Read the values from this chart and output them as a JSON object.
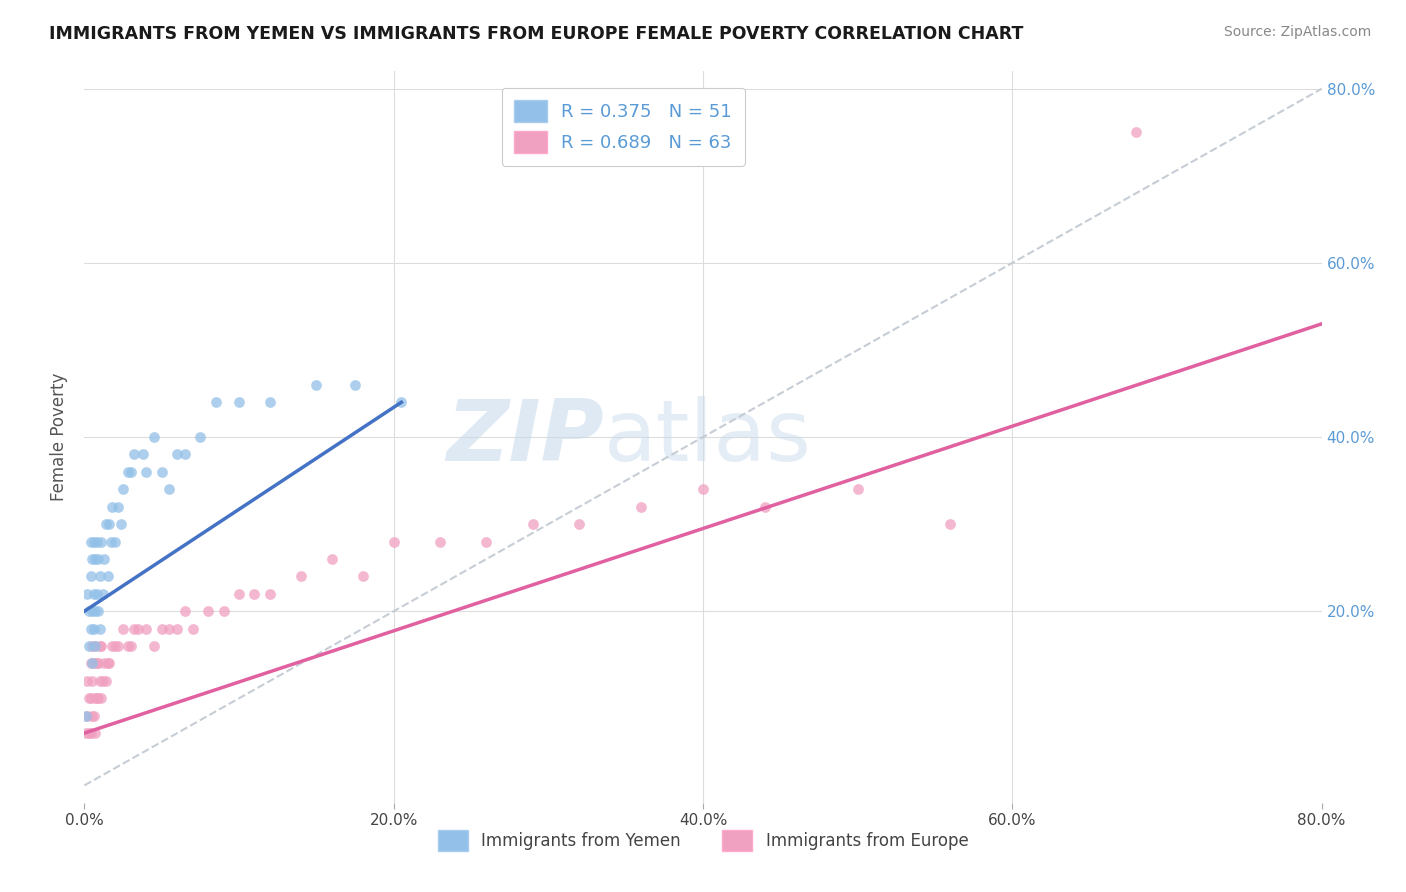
{
  "title": "IMMIGRANTS FROM YEMEN VS IMMIGRANTS FROM EUROPE FEMALE POVERTY CORRELATION CHART",
  "source": "Source: ZipAtlas.com",
  "ylabel": "Female Poverty",
  "xlim": [
    0.0,
    0.8
  ],
  "ylim": [
    -0.02,
    0.82
  ],
  "xtick_vals": [
    0.0,
    0.2,
    0.4,
    0.6,
    0.8
  ],
  "xtick_labels": [
    "0.0%",
    "20.0%",
    "40.0%",
    "60.0%",
    "80.0%"
  ],
  "ytick_vals": [
    0.2,
    0.4,
    0.6,
    0.8
  ],
  "ytick_labels": [
    "20.0%",
    "40.0%",
    "60.0%",
    "80.0%"
  ],
  "watermark_zip": "ZIP",
  "watermark_atlas": "atlas",
  "legend_r1": "R = 0.375   N = 51",
  "legend_r2": "R = 0.689   N = 63",
  "color_blue": "#92C0E8",
  "color_pink": "#F0A0C0",
  "color_blue_line": "#4472C4",
  "color_pink_line": "#E060A0",
  "color_diag": "#C0C8D0",
  "yemen_x": [
    0.001,
    0.002,
    0.003,
    0.003,
    0.004,
    0.004,
    0.004,
    0.005,
    0.005,
    0.005,
    0.006,
    0.006,
    0.006,
    0.007,
    0.007,
    0.007,
    0.008,
    0.008,
    0.009,
    0.009,
    0.01,
    0.01,
    0.011,
    0.012,
    0.013,
    0.014,
    0.015,
    0.016,
    0.017,
    0.018,
    0.02,
    0.022,
    0.024,
    0.025,
    0.028,
    0.03,
    0.032,
    0.038,
    0.04,
    0.045,
    0.05,
    0.055,
    0.06,
    0.065,
    0.075,
    0.085,
    0.1,
    0.12,
    0.15,
    0.175,
    0.205
  ],
  "yemen_y": [
    0.08,
    0.22,
    0.16,
    0.2,
    0.18,
    0.24,
    0.28,
    0.14,
    0.2,
    0.26,
    0.18,
    0.22,
    0.28,
    0.16,
    0.2,
    0.26,
    0.22,
    0.28,
    0.2,
    0.26,
    0.18,
    0.24,
    0.28,
    0.22,
    0.26,
    0.3,
    0.24,
    0.3,
    0.28,
    0.32,
    0.28,
    0.32,
    0.3,
    0.34,
    0.36,
    0.36,
    0.38,
    0.38,
    0.36,
    0.4,
    0.36,
    0.34,
    0.38,
    0.38,
    0.4,
    0.44,
    0.44,
    0.44,
    0.46,
    0.46,
    0.44
  ],
  "europe_x": [
    0.001,
    0.002,
    0.002,
    0.003,
    0.003,
    0.004,
    0.004,
    0.004,
    0.005,
    0.005,
    0.005,
    0.006,
    0.006,
    0.007,
    0.007,
    0.007,
    0.008,
    0.008,
    0.009,
    0.009,
    0.01,
    0.01,
    0.011,
    0.011,
    0.012,
    0.013,
    0.014,
    0.015,
    0.016,
    0.018,
    0.02,
    0.022,
    0.025,
    0.028,
    0.03,
    0.032,
    0.035,
    0.04,
    0.045,
    0.05,
    0.055,
    0.06,
    0.065,
    0.07,
    0.08,
    0.09,
    0.1,
    0.11,
    0.12,
    0.14,
    0.16,
    0.18,
    0.2,
    0.23,
    0.26,
    0.29,
    0.32,
    0.36,
    0.4,
    0.44,
    0.5,
    0.56,
    0.68
  ],
  "europe_y": [
    0.06,
    0.08,
    0.12,
    0.06,
    0.1,
    0.06,
    0.1,
    0.14,
    0.08,
    0.12,
    0.16,
    0.08,
    0.14,
    0.06,
    0.1,
    0.16,
    0.1,
    0.14,
    0.1,
    0.14,
    0.12,
    0.16,
    0.1,
    0.16,
    0.12,
    0.14,
    0.12,
    0.14,
    0.14,
    0.16,
    0.16,
    0.16,
    0.18,
    0.16,
    0.16,
    0.18,
    0.18,
    0.18,
    0.16,
    0.18,
    0.18,
    0.18,
    0.2,
    0.18,
    0.2,
    0.2,
    0.22,
    0.22,
    0.22,
    0.24,
    0.26,
    0.24,
    0.28,
    0.28,
    0.28,
    0.3,
    0.3,
    0.32,
    0.34,
    0.32,
    0.34,
    0.3,
    0.75
  ],
  "yemen_line_x": [
    0.0,
    0.205
  ],
  "yemen_line_y": [
    0.2,
    0.44
  ],
  "europe_line_x": [
    0.0,
    0.8
  ],
  "europe_line_y": [
    0.06,
    0.53
  ]
}
